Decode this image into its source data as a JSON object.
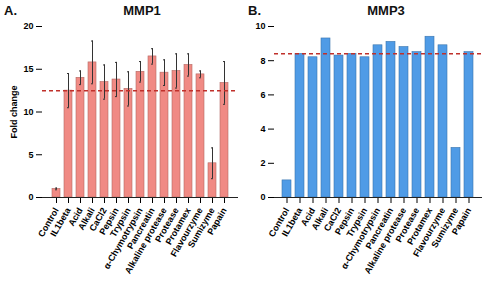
{
  "chart_data": [
    {
      "type": "bar",
      "panel": "A.",
      "title": "MMP1",
      "ylabel": "Fold change",
      "categories": [
        "Control",
        "IL1beta",
        "Acid",
        "Alkali",
        "CaCl2",
        "Pepsin",
        "Trypsin",
        "α-Chymotrypsin",
        "Pancreatin",
        "Alkaline protease",
        "Protease",
        "Protamex",
        "Flavourzyme",
        "Sumizyme",
        "Papain"
      ],
      "values": [
        1,
        12.5,
        14,
        15.8,
        13.5,
        13.8,
        12.7,
        14.7,
        16.5,
        14.6,
        14.8,
        15.5,
        14.4,
        4,
        13.4
      ],
      "errors": [
        0.1,
        2,
        0.8,
        2.5,
        2,
        2,
        2,
        1.2,
        0.9,
        1.5,
        2,
        1.3,
        0.4,
        1.8,
        2.5
      ],
      "reference_line": 12.5,
      "color": "#f08a84",
      "ylim": [
        0,
        20
      ],
      "yticks": [
        0,
        5,
        10,
        15,
        20
      ]
    },
    {
      "type": "bar",
      "panel": "B.",
      "title": "MMP3",
      "categories": [
        "Control",
        "IL1beta",
        "Acid",
        "Alkali",
        "CaCl2",
        "Pepsin",
        "Trypsin",
        "α-Chymotrypsin",
        "Pancreatin",
        "Alkaline protease",
        "Protease",
        "Protamex",
        "Flavourzyme",
        "Sumizyme",
        "Papain"
      ],
      "values": [
        1,
        8.4,
        8.2,
        9.3,
        8.3,
        8.4,
        8.2,
        8.9,
        9.1,
        8.8,
        8.5,
        9.4,
        8.9,
        2.9,
        8.5
      ],
      "reference_line": 8.4,
      "color": "#4f9be6",
      "ylim": [
        0,
        10
      ],
      "yticks": [
        0,
        2,
        4,
        6,
        8,
        10
      ]
    }
  ]
}
